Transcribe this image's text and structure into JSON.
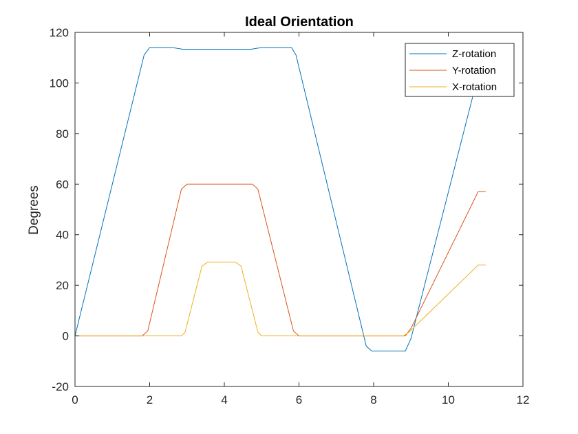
{
  "chart_data": {
    "type": "line",
    "title": "Ideal Orientation",
    "xlabel": "",
    "ylabel": "Degrees",
    "xlim": [
      0,
      12
    ],
    "ylim": [
      -20,
      120
    ],
    "x_ticks": [
      0,
      2,
      4,
      6,
      8,
      10,
      12
    ],
    "y_ticks": [
      -20,
      0,
      20,
      40,
      60,
      80,
      100,
      120
    ],
    "grid": false,
    "legend_position": "top-right",
    "series": [
      {
        "name": "Z-rotation",
        "color": "#0072BD",
        "x": [
          0,
          1.85,
          2.0,
          2.6,
          2.9,
          4.7,
          5.0,
          5.8,
          5.92,
          7.8,
          7.95,
          8.85,
          9.0,
          10.8,
          11.0
        ],
        "y": [
          0,
          111,
          114,
          114,
          113.3,
          113.3,
          114,
          114,
          111,
          -4,
          -6,
          -6,
          -1,
          103,
          103
        ]
      },
      {
        "name": "Y-rotation",
        "color": "#D95319",
        "x": [
          0,
          1.8,
          1.95,
          2.85,
          3.0,
          4.75,
          4.9,
          5.85,
          6.0,
          8.85,
          9.0,
          10.8,
          11.0
        ],
        "y": [
          0,
          0,
          2,
          58,
          60,
          60,
          58,
          2,
          0,
          0,
          3,
          57,
          57
        ]
      },
      {
        "name": "X-rotation",
        "color": "#EDB120",
        "x": [
          0,
          2.85,
          2.95,
          3.4,
          3.55,
          4.3,
          4.45,
          4.9,
          5.0,
          8.8,
          8.95,
          10.8,
          11.0
        ],
        "y": [
          0,
          0,
          1.5,
          27.5,
          29.2,
          29.2,
          27.5,
          1.5,
          0,
          0,
          1.5,
          28,
          28
        ]
      }
    ]
  }
}
